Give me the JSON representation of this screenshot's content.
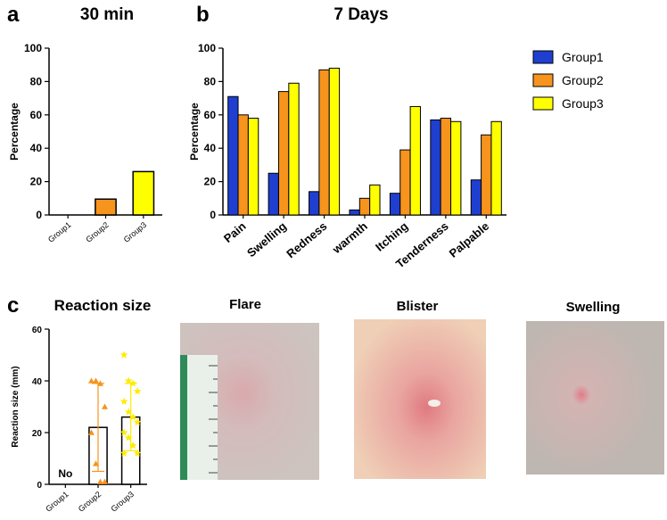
{
  "panels": [
    "a",
    "b",
    "c"
  ],
  "chart_data": [
    {
      "type": "bar",
      "title": "30 min",
      "y_label": "Percentage",
      "categories": [
        "Group1",
        "Group2",
        "Group3"
      ],
      "values": [
        0,
        9.5,
        26
      ],
      "colors": [
        "#1f3fd1",
        "#f7941d",
        "#ffff00"
      ],
      "ylim": [
        0,
        100
      ],
      "yticks": [
        0,
        20,
        40,
        60,
        80,
        100
      ]
    },
    {
      "type": "bar",
      "title": "7 Days",
      "y_label": "Percentage",
      "categories": [
        "Pain",
        "Swelling",
        "Redness",
        "warmth",
        "Itching",
        "Tenderness",
        "Palpable"
      ],
      "series": [
        {
          "name": "Group1",
          "color": "#1f3fd1",
          "values": [
            71,
            25,
            14,
            3,
            13,
            57,
            21
          ]
        },
        {
          "name": "Group2",
          "color": "#f7941d",
          "values": [
            60,
            74,
            87,
            10,
            39,
            58,
            48
          ]
        },
        {
          "name": "Group3",
          "color": "#ffff00",
          "values": [
            58,
            79,
            88,
            18,
            65,
            56,
            56
          ]
        }
      ],
      "ylim": [
        0,
        100
      ],
      "yticks": [
        0,
        20,
        40,
        60,
        80,
        100
      ],
      "legend": "right"
    },
    {
      "type": "bar",
      "title": "Reaction size",
      "y_label": "Reaction size (mm)",
      "categories": [
        "Group1",
        "Group2",
        "Group3"
      ],
      "values": [
        null,
        22,
        26
      ],
      "errors": [
        null,
        17,
        13
      ],
      "color": "#ffffff",
      "points": [
        null,
        [
          40,
          40,
          39,
          30,
          20,
          8,
          1,
          1
        ],
        [
          50,
          40,
          39,
          36,
          32,
          28,
          26,
          24,
          20,
          18,
          15,
          12,
          12
        ]
      ],
      "markers": [
        null,
        "triangle",
        "star"
      ],
      "point_colors": [
        null,
        "#f7941d",
        "#ffeb00"
      ],
      "annotation": "No",
      "annotation_color": "#1f3fd1",
      "ylim": [
        0,
        60
      ],
      "yticks": [
        0,
        20,
        40,
        60
      ]
    }
  ],
  "photos": [
    {
      "title": "Flare"
    },
    {
      "title": "Blister"
    },
    {
      "title": "Swelling"
    }
  ]
}
